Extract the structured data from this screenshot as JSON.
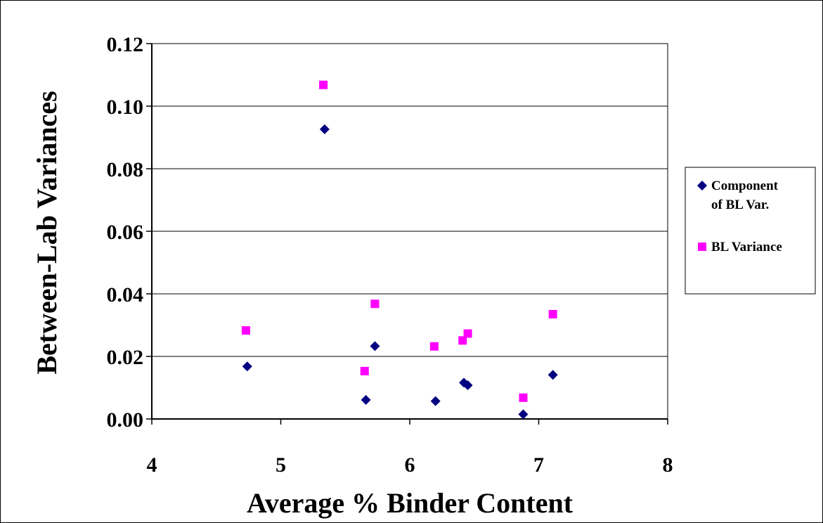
{
  "chart_data": {
    "type": "scatter",
    "title": "",
    "xlabel": "Average % Binder Content",
    "ylabel": "Between-Lab Variances",
    "xlim": [
      4,
      8
    ],
    "ylim": [
      0,
      0.12
    ],
    "x_ticks": [
      "4",
      "5",
      "6",
      "7",
      "8"
    ],
    "y_ticks": [
      "0.00",
      "0.02",
      "0.04",
      "0.06",
      "0.08",
      "0.10",
      "0.12"
    ],
    "grid": "horizontal",
    "legend_position": "right",
    "series": [
      {
        "name": "Component of BL Var.",
        "legend_lines": [
          "Component",
          "of BL Var."
        ],
        "marker": "diamond",
        "color": "#000080",
        "points": [
          {
            "x": 4.74,
            "y": 0.0168
          },
          {
            "x": 5.34,
            "y": 0.0926
          },
          {
            "x": 5.66,
            "y": 0.0061
          },
          {
            "x": 5.73,
            "y": 0.0233
          },
          {
            "x": 6.2,
            "y": 0.0057
          },
          {
            "x": 6.42,
            "y": 0.0116
          },
          {
            "x": 6.45,
            "y": 0.0108
          },
          {
            "x": 6.88,
            "y": 0.0015
          },
          {
            "x": 7.11,
            "y": 0.0141
          }
        ]
      },
      {
        "name": "BL Variance",
        "legend_lines": [
          "BL Variance"
        ],
        "marker": "square",
        "color": "#ff00ff",
        "points": [
          {
            "x": 4.73,
            "y": 0.0283
          },
          {
            "x": 5.33,
            "y": 0.1068
          },
          {
            "x": 5.65,
            "y": 0.0153
          },
          {
            "x": 5.73,
            "y": 0.0368
          },
          {
            "x": 6.19,
            "y": 0.0232
          },
          {
            "x": 6.41,
            "y": 0.0251
          },
          {
            "x": 6.45,
            "y": 0.0273
          },
          {
            "x": 6.88,
            "y": 0.0068
          },
          {
            "x": 7.11,
            "y": 0.0335
          }
        ]
      }
    ]
  }
}
